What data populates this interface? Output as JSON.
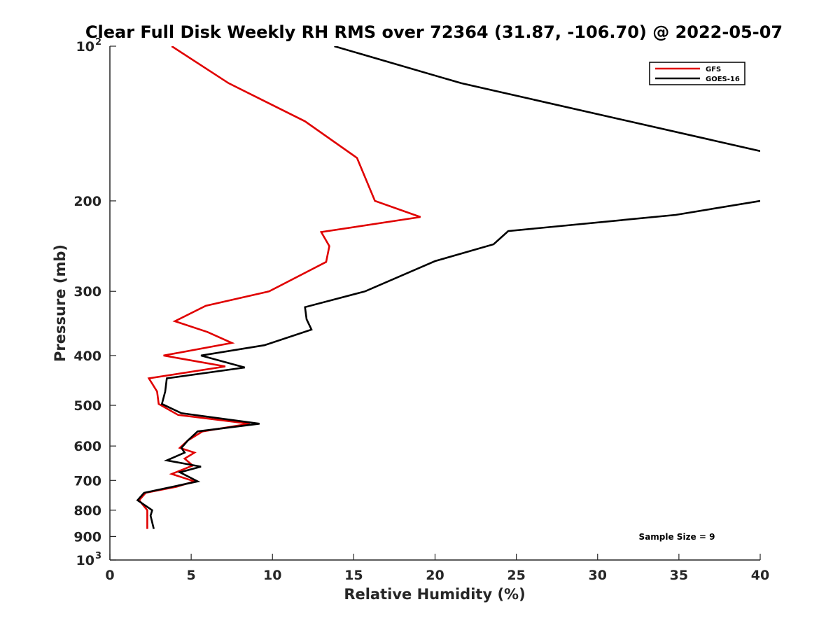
{
  "chart_data": {
    "type": "line",
    "title": "Clear Full Disk Weekly RH RMS over 72364 (31.87, -106.70) @ 2022-05-07",
    "xlabel": "Relative Humidity (%)",
    "ylabel": "Pressure (mb)",
    "xlim": [
      0,
      40
    ],
    "ylim": [
      100,
      1000
    ],
    "y_scale": "log",
    "y_reversed": true,
    "grid": false,
    "legend_position": "top-right",
    "annotation": "Sample Size = 9",
    "x_ticks": [
      {
        "value": 0,
        "label": "0"
      },
      {
        "value": 5,
        "label": "5"
      },
      {
        "value": 10,
        "label": "10"
      },
      {
        "value": 15,
        "label": "15"
      },
      {
        "value": 20,
        "label": "20"
      },
      {
        "value": 25,
        "label": "25"
      },
      {
        "value": 30,
        "label": "30"
      },
      {
        "value": 35,
        "label": "35"
      },
      {
        "value": 40,
        "label": "40"
      }
    ],
    "y_ticks": [
      {
        "value": 100,
        "label": "10",
        "sup": "2"
      },
      {
        "value": 200,
        "label": "200"
      },
      {
        "value": 300,
        "label": "300"
      },
      {
        "value": 400,
        "label": "400"
      },
      {
        "value": 500,
        "label": "500"
      },
      {
        "value": 600,
        "label": "600"
      },
      {
        "value": 700,
        "label": "700"
      },
      {
        "value": 800,
        "label": "800"
      },
      {
        "value": 900,
        "label": "900"
      },
      {
        "value": 1000,
        "label": "10",
        "sup": "3"
      }
    ],
    "series": [
      {
        "name": "GFS",
        "color": "#e00000",
        "points": [
          [
            3.8,
            100
          ],
          [
            7.3,
            118
          ],
          [
            12.0,
            140
          ],
          [
            15.2,
            165
          ],
          [
            16.3,
            200
          ],
          [
            19.1,
            215
          ],
          [
            13.0,
            230
          ],
          [
            13.5,
            245
          ],
          [
            13.3,
            263
          ],
          [
            9.8,
            300
          ],
          [
            5.9,
            320
          ],
          [
            4.0,
            343
          ],
          [
            6.0,
            360
          ],
          [
            7.5,
            378
          ],
          [
            3.3,
            400
          ],
          [
            7.1,
            420
          ],
          [
            2.4,
            443
          ],
          [
            2.9,
            470
          ],
          [
            3.0,
            497
          ],
          [
            4.2,
            522
          ],
          [
            8.6,
            543
          ],
          [
            5.7,
            562
          ],
          [
            4.8,
            585
          ],
          [
            4.3,
            605
          ],
          [
            5.2,
            618
          ],
          [
            4.6,
            635
          ],
          [
            5.1,
            655
          ],
          [
            3.8,
            680
          ],
          [
            5.2,
            703
          ],
          [
            4.1,
            720
          ],
          [
            2.2,
            740
          ],
          [
            1.8,
            765
          ],
          [
            2.3,
            800
          ],
          [
            2.3,
            835
          ],
          [
            2.3,
            870
          ]
        ]
      },
      {
        "name": "GOES-16",
        "color": "#000000",
        "points": [
          [
            13.8,
            100
          ],
          [
            21.6,
            118
          ],
          [
            40.0,
            160
          ]
        ],
        "points_lower": [
          [
            40.0,
            200
          ],
          [
            34.8,
            213
          ],
          [
            24.5,
            229
          ],
          [
            23.6,
            243
          ],
          [
            20.0,
            262
          ],
          [
            15.7,
            300
          ],
          [
            12.0,
            322
          ],
          [
            12.1,
            340
          ],
          [
            12.4,
            356
          ],
          [
            9.5,
            382
          ],
          [
            5.6,
            400
          ],
          [
            8.3,
            422
          ],
          [
            3.5,
            443
          ],
          [
            3.4,
            470
          ],
          [
            3.2,
            497
          ],
          [
            4.4,
            518
          ],
          [
            9.2,
            543
          ],
          [
            5.4,
            562
          ],
          [
            4.8,
            585
          ],
          [
            4.4,
            605
          ],
          [
            4.6,
            618
          ],
          [
            3.5,
            640
          ],
          [
            5.6,
            658
          ],
          [
            4.3,
            675
          ],
          [
            5.4,
            703
          ],
          [
            2.1,
            740
          ],
          [
            1.7,
            765
          ],
          [
            2.6,
            800
          ],
          [
            2.5,
            820
          ],
          [
            2.7,
            870
          ]
        ]
      }
    ]
  }
}
